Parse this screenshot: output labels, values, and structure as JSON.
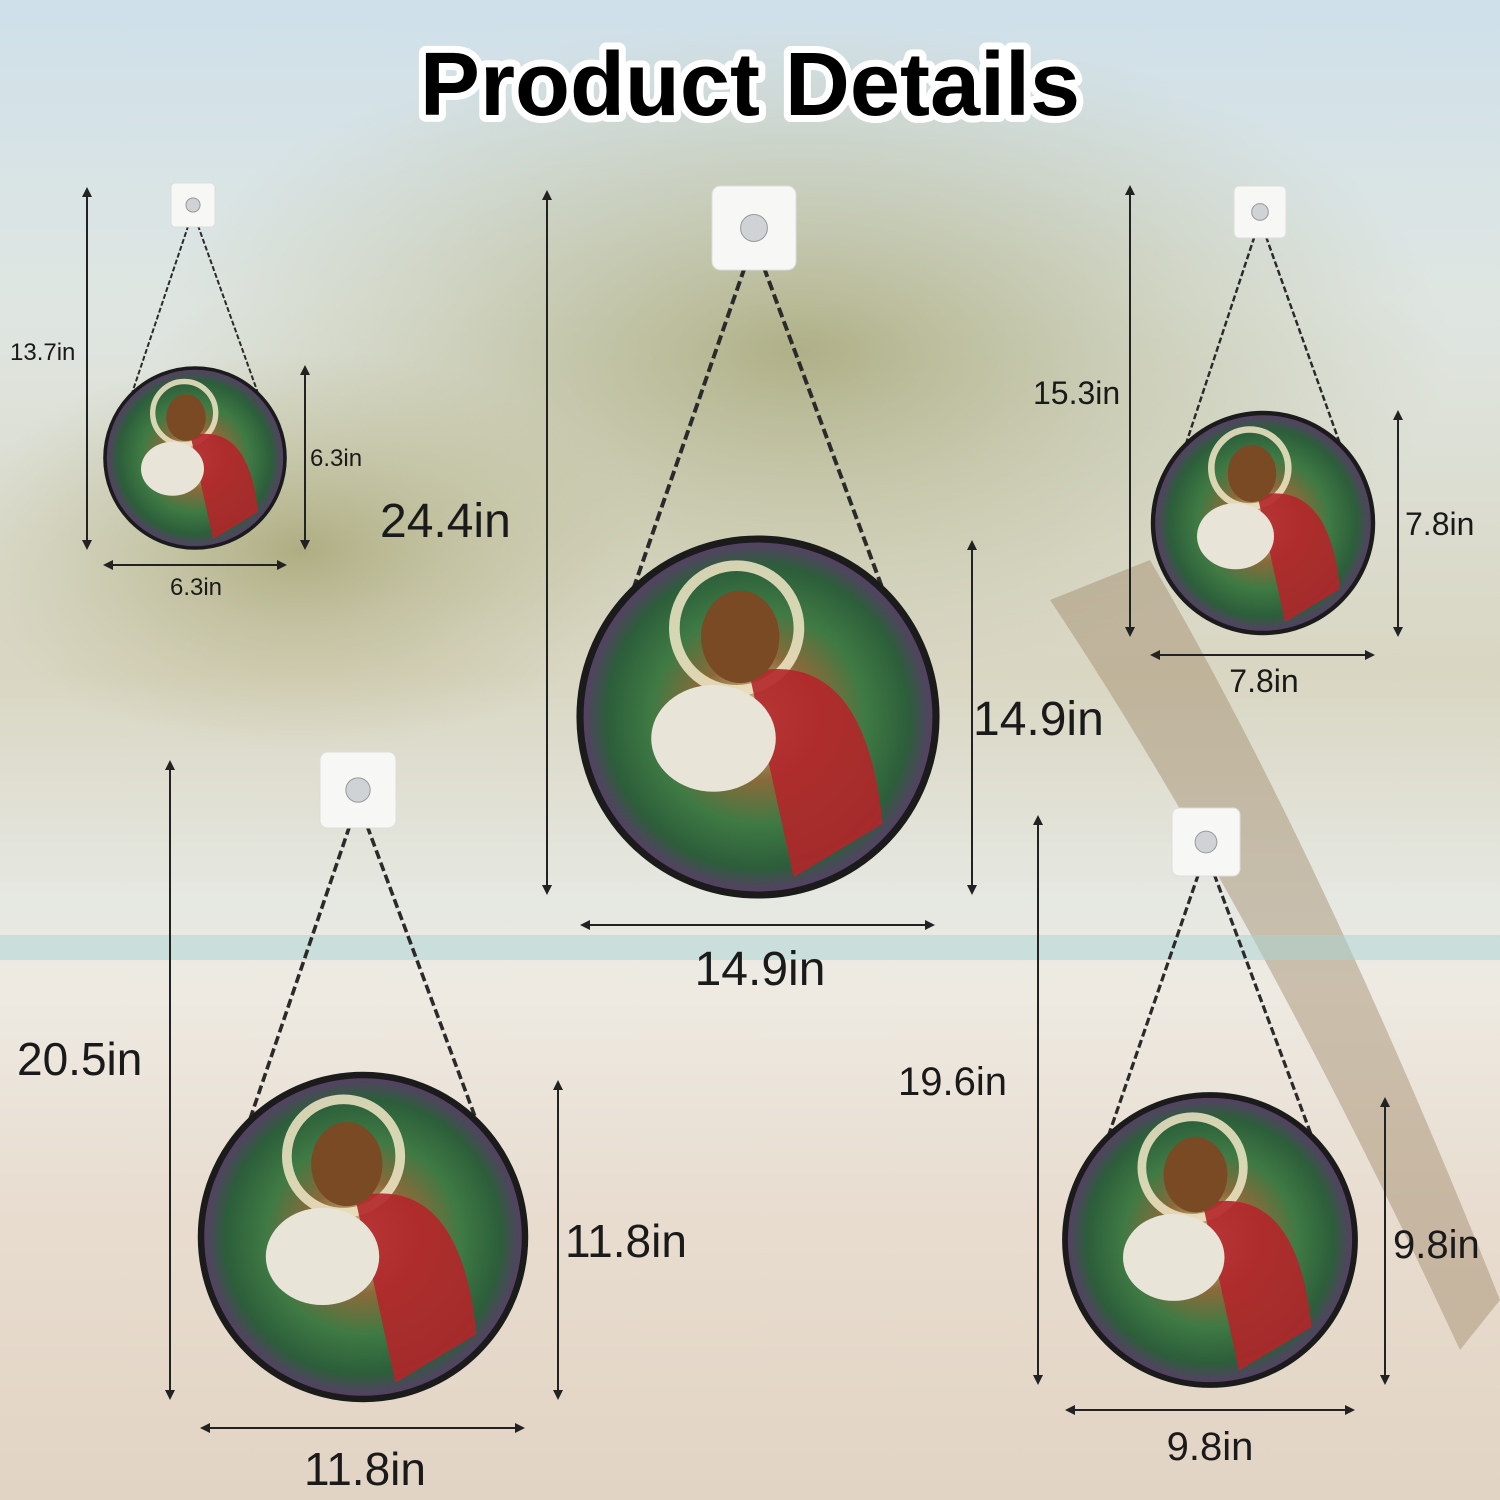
{
  "title": "Product Details",
  "products": [
    {
      "total_length": "13.7in",
      "diameter": "6.3in"
    },
    {
      "total_length": "24.4in",
      "diameter": "14.9in"
    },
    {
      "total_length": "15.3in",
      "diameter": "7.8in"
    },
    {
      "total_length": "20.5in",
      "diameter": "11.8in"
    },
    {
      "total_length": "19.6in",
      "diameter": "9.8in"
    }
  ],
  "colors": {
    "frame": "#1b1b1b",
    "robe": "#b3262a",
    "glass_green": "#4f8a3a",
    "halo": "#f2e7c8",
    "lamb": "#e8e4d8"
  }
}
